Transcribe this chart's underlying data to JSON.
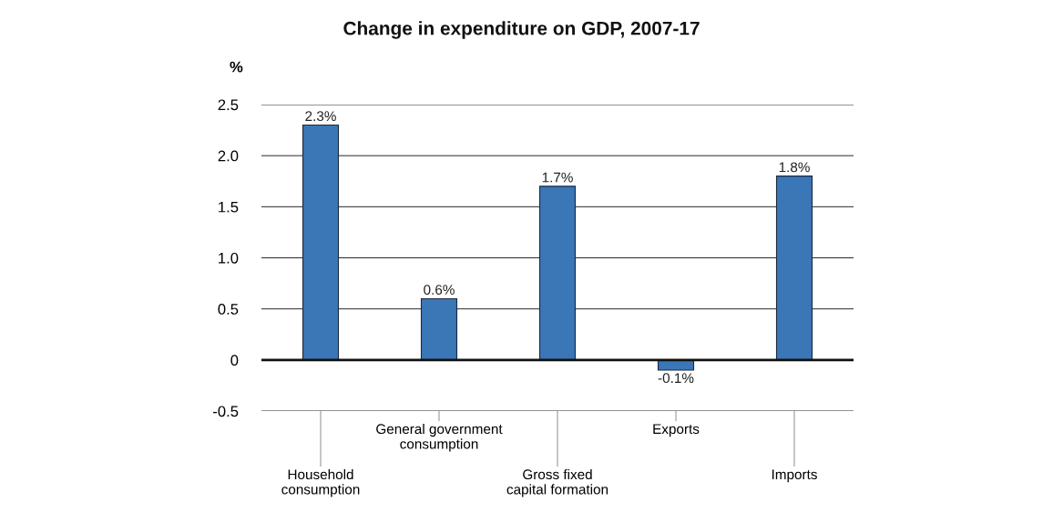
{
  "chart_data": {
    "type": "bar",
    "title": "Change in expenditure on GDP, 2007-17",
    "ylabel": "%",
    "categories": [
      "Household\nconsumption",
      "General government\nconsumption",
      "Gross fixed\ncapital formation",
      "Exports",
      "Imports"
    ],
    "values": [
      2.3,
      0.6,
      1.7,
      -0.1,
      1.8
    ],
    "value_labels": [
      "2.3%",
      "0.6%",
      "1.7%",
      "-0.1%",
      "1.8%"
    ],
    "color": "#3b76b6",
    "ylim": [
      -0.5,
      2.5
    ],
    "yticks": [
      {
        "value": -0.5,
        "label": "-0.5"
      },
      0,
      {
        "value": 0.5,
        "label": "0.5"
      },
      {
        "value": 1,
        "label": "1.0"
      },
      {
        "value": 1.5,
        "label": "1.5"
      },
      {
        "value": 2,
        "label": "2.0"
      },
      {
        "value": 2.5,
        "label": "2.5"
      }
    ],
    "grid": "y"
  }
}
